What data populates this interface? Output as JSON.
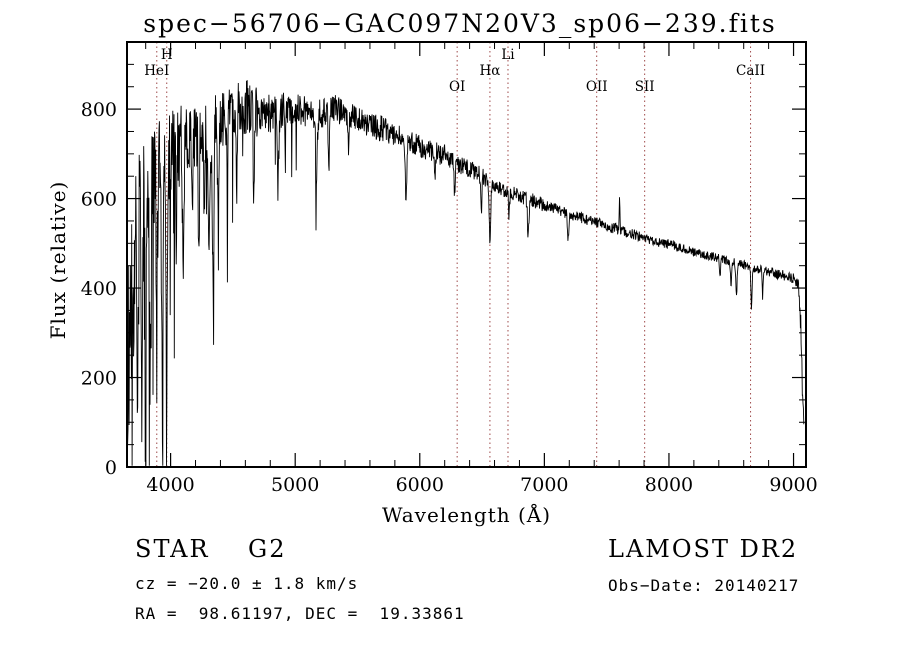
{
  "title": "spec−56706−GAC097N20V3_sp06−239.fits",
  "colors": {
    "background": "#ffffff",
    "line": "#000000",
    "marker": "#9e4a4a",
    "text": "#000000"
  },
  "chart_data": {
    "type": "line",
    "title": "spec−56706−GAC097N20V3_sp06−239.fits",
    "xlabel": "Wavelength (Å)",
    "ylabel": "Flux (relative)",
    "xlim": [
      3650,
      9100
    ],
    "ylim": [
      0,
      950
    ],
    "x_ticks": [
      4000,
      5000,
      6000,
      7000,
      8000,
      9000
    ],
    "y_ticks": [
      0,
      200,
      400,
      600,
      800
    ],
    "x_minor_step": 200,
    "y_minor_step": 50,
    "grid": false,
    "legend": null,
    "spectral_lines": [
      {
        "label": "HeI",
        "wavelength": 3889,
        "row": 1
      },
      {
        "label": "H",
        "wavelength": 3969,
        "row": 0
      },
      {
        "label": "OI",
        "wavelength": 6300,
        "row": 2
      },
      {
        "label": "Hα",
        "wavelength": 6563,
        "row": 1
      },
      {
        "label": "Li",
        "wavelength": 6708,
        "row": 0
      },
      {
        "label": "OII",
        "wavelength": 7420,
        "row": 2
      },
      {
        "label": "SII",
        "wavelength": 7805,
        "row": 2
      },
      {
        "label": "CaII",
        "wavelength": 8655,
        "row": 1
      }
    ],
    "continuum": [
      [
        3655,
        230
      ],
      [
        3680,
        330
      ],
      [
        3710,
        430
      ],
      [
        3740,
        510
      ],
      [
        3780,
        560
      ],
      [
        3820,
        600
      ],
      [
        3860,
        628
      ],
      [
        3900,
        650
      ],
      [
        3950,
        672
      ],
      [
        4000,
        700
      ],
      [
        4100,
        730
      ],
      [
        4200,
        748
      ],
      [
        4300,
        742
      ],
      [
        4400,
        772
      ],
      [
        4500,
        800
      ],
      [
        4600,
        806
      ],
      [
        4700,
        796
      ],
      [
        4800,
        790
      ],
      [
        4900,
        796
      ],
      [
        5000,
        800
      ],
      [
        5100,
        794
      ],
      [
        5200,
        790
      ],
      [
        5300,
        800
      ],
      [
        5400,
        790
      ],
      [
        5500,
        776
      ],
      [
        5600,
        766
      ],
      [
        5700,
        756
      ],
      [
        5800,
        746
      ],
      [
        5900,
        732
      ],
      [
        6000,
        716
      ],
      [
        6100,
        706
      ],
      [
        6200,
        696
      ],
      [
        6300,
        676
      ],
      [
        6400,
        666
      ],
      [
        6500,
        650
      ],
      [
        6600,
        626
      ],
      [
        6700,
        616
      ],
      [
        6800,
        606
      ],
      [
        6900,
        596
      ],
      [
        7000,
        586
      ],
      [
        7100,
        576
      ],
      [
        7200,
        566
      ],
      [
        7300,
        558
      ],
      [
        7400,
        548
      ],
      [
        7500,
        540
      ],
      [
        7600,
        530
      ],
      [
        7700,
        522
      ],
      [
        7800,
        512
      ],
      [
        7900,
        503
      ],
      [
        8000,
        497
      ],
      [
        8100,
        490
      ],
      [
        8200,
        482
      ],
      [
        8300,
        473
      ],
      [
        8400,
        467
      ],
      [
        8500,
        458
      ],
      [
        8600,
        452
      ],
      [
        8700,
        443
      ],
      [
        8800,
        437
      ],
      [
        8900,
        430
      ],
      [
        9000,
        422
      ],
      [
        9040,
        408
      ],
      [
        9060,
        290
      ],
      [
        9080,
        92
      ]
    ],
    "absorption_features": [
      [
        3735,
        340,
        5
      ],
      [
        3770,
        420,
        5
      ],
      [
        3798,
        380,
        5
      ],
      [
        3835,
        450,
        5
      ],
      [
        3889,
        300,
        5
      ],
      [
        3934,
        580,
        6
      ],
      [
        3969,
        480,
        6
      ],
      [
        4045,
        200,
        4
      ],
      [
        4101,
        340,
        6
      ],
      [
        4173,
        180,
        4
      ],
      [
        4226,
        280,
        5
      ],
      [
        4270,
        200,
        4
      ],
      [
        4308,
        300,
        7
      ],
      [
        4341,
        330,
        6
      ],
      [
        4383,
        260,
        5
      ],
      [
        4455,
        180,
        4
      ],
      [
        4530,
        160,
        5
      ],
      [
        4668,
        170,
        5
      ],
      [
        4861,
        180,
        6
      ],
      [
        4920,
        120,
        4
      ],
      [
        5170,
        140,
        7
      ],
      [
        5270,
        110,
        5
      ],
      [
        5430,
        90,
        4
      ],
      [
        5890,
        145,
        6
      ],
      [
        6122,
        70,
        4
      ],
      [
        6280,
        70,
        5
      ],
      [
        6495,
        80,
        4
      ],
      [
        6563,
        125,
        6
      ],
      [
        6717,
        55,
        4
      ],
      [
        6870,
        75,
        6
      ],
      [
        7190,
        50,
        6
      ],
      [
        8410,
        40,
        4
      ],
      [
        8498,
        50,
        4
      ],
      [
        8542,
        70,
        5
      ],
      [
        8662,
        85,
        5
      ],
      [
        8752,
        60,
        4
      ]
    ],
    "emission_features": [
      [
        7604,
        70,
        3
      ]
    ],
    "noise": {
      "seed": 20140217,
      "regions": [
        [
          3655,
          3800,
          215
        ],
        [
          3800,
          3950,
          150
        ],
        [
          3950,
          4100,
          95
        ],
        [
          4100,
          4400,
          75
        ],
        [
          4400,
          4700,
          62
        ],
        [
          4700,
          5000,
          42
        ],
        [
          5000,
          5400,
          34
        ],
        [
          5400,
          5800,
          30
        ],
        [
          5800,
          6200,
          25
        ],
        [
          6200,
          6600,
          20
        ],
        [
          6600,
          7000,
          16
        ],
        [
          7000,
          7600,
          13
        ],
        [
          7600,
          8200,
          11
        ],
        [
          8200,
          8800,
          10
        ],
        [
          8800,
          9050,
          12
        ],
        [
          9050,
          9100,
          40
        ]
      ],
      "random_dips": [
        [
          3655,
          4050,
          0.1,
          450
        ],
        [
          4050,
          4650,
          0.05,
          260
        ],
        [
          4650,
          5300,
          0.02,
          140
        ]
      ]
    }
  },
  "footer": {
    "class_label": "STAR    G2",
    "survey": "LAMOST DR2",
    "cz": "cz = −20.0 ± 1.8 km/s",
    "obs_date": "Obs−Date: 20140217",
    "coords": "RA =  98.61197, DEC =  19.33861"
  }
}
